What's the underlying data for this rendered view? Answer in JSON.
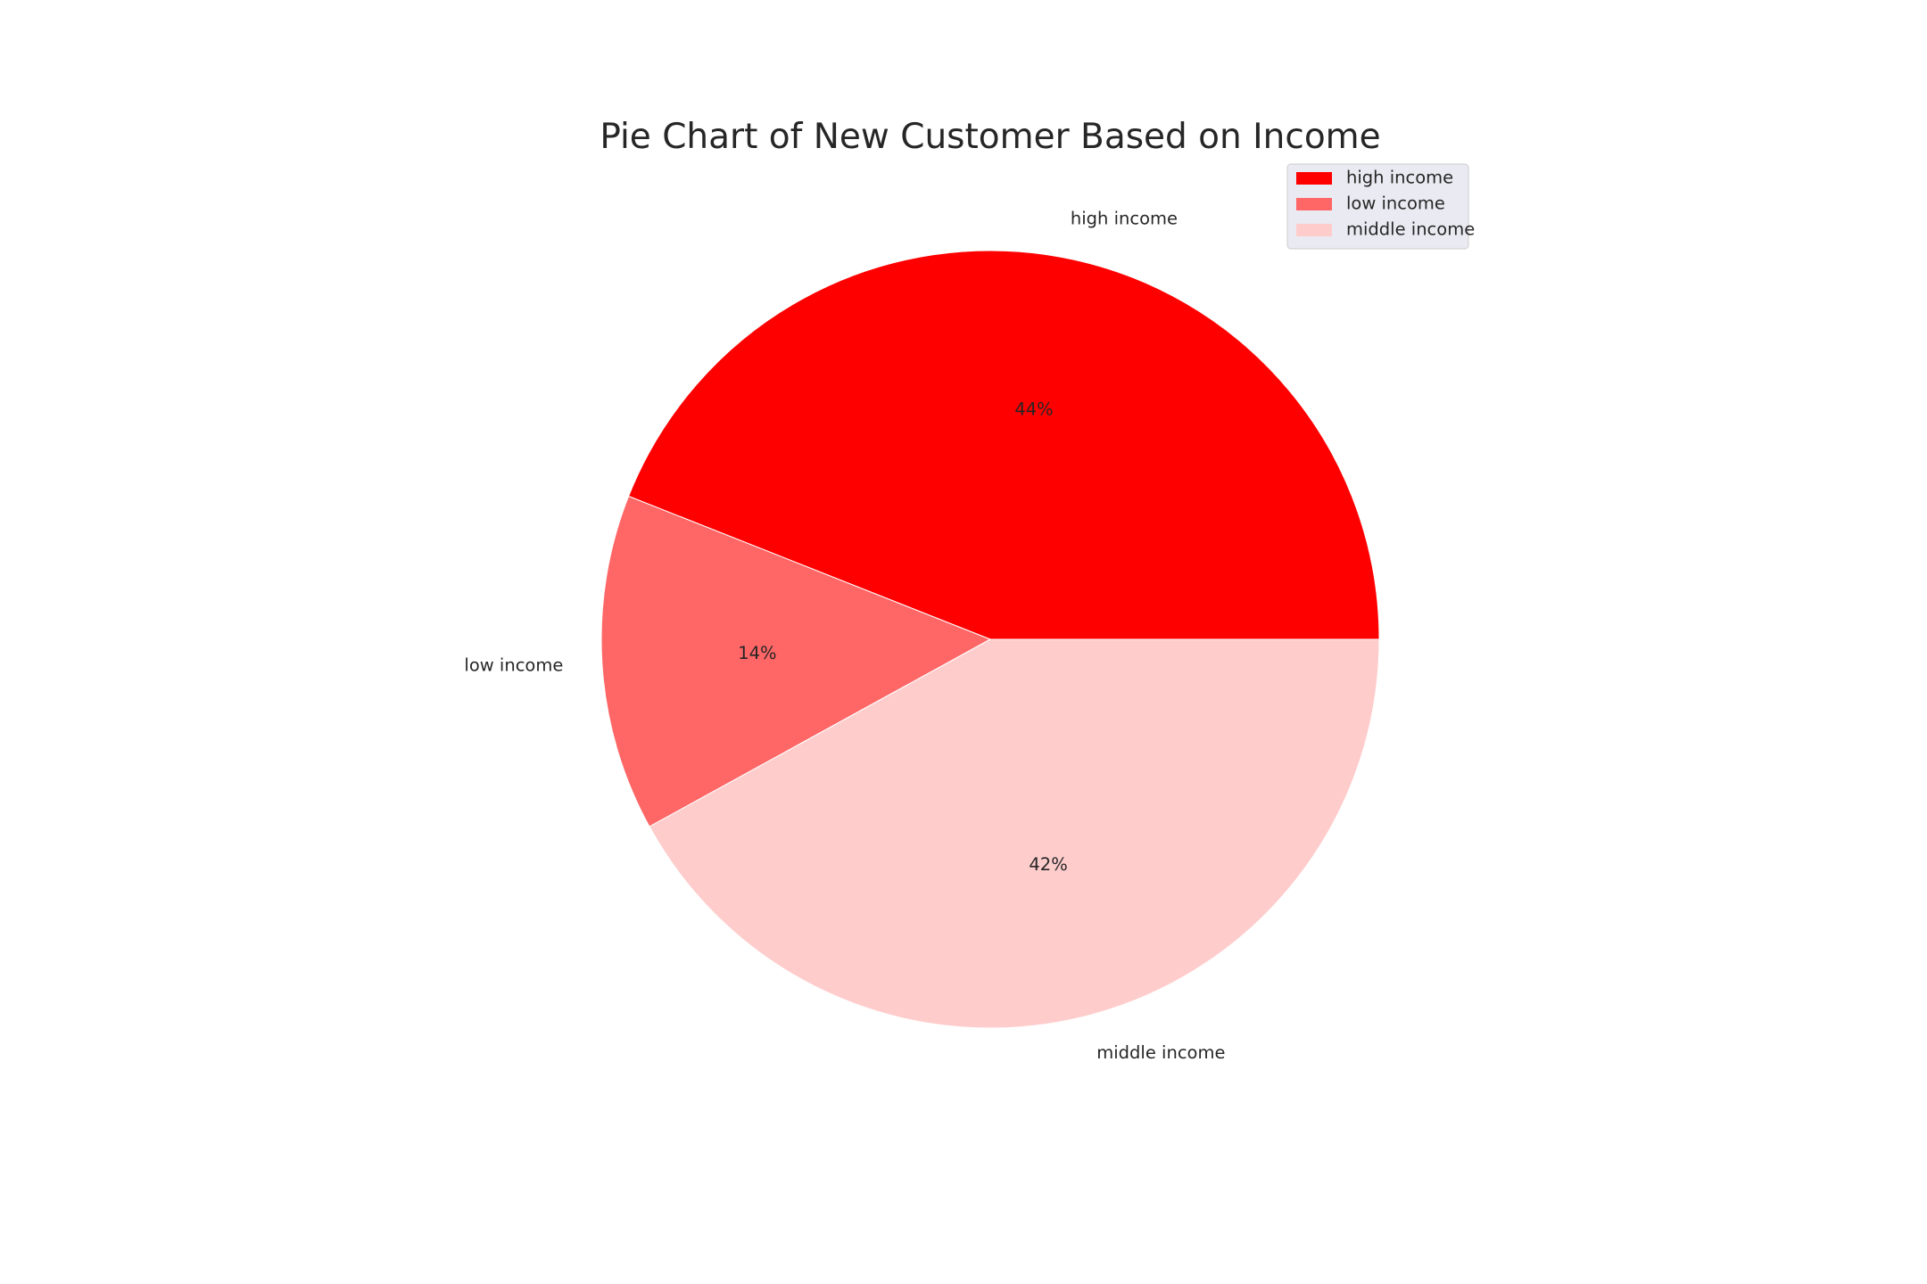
{
  "chart_data": {
    "type": "pie",
    "title": "Pie Chart of New Customer Based on Income",
    "slices": [
      {
        "label": "high income",
        "value": 44,
        "pct_label": "44%",
        "color": "#ff0000"
      },
      {
        "label": "low income",
        "value": 14,
        "pct_label": "14%",
        "color": "#ff6666"
      },
      {
        "label": "middle income",
        "value": 42,
        "pct_label": "42%",
        "color": "#ffcccc"
      }
    ],
    "start_angle_deg": 0,
    "direction": "counterclockwise",
    "legend": {
      "placement": "top-right",
      "entries": [
        "high income",
        "low income",
        "middle income"
      ]
    }
  }
}
